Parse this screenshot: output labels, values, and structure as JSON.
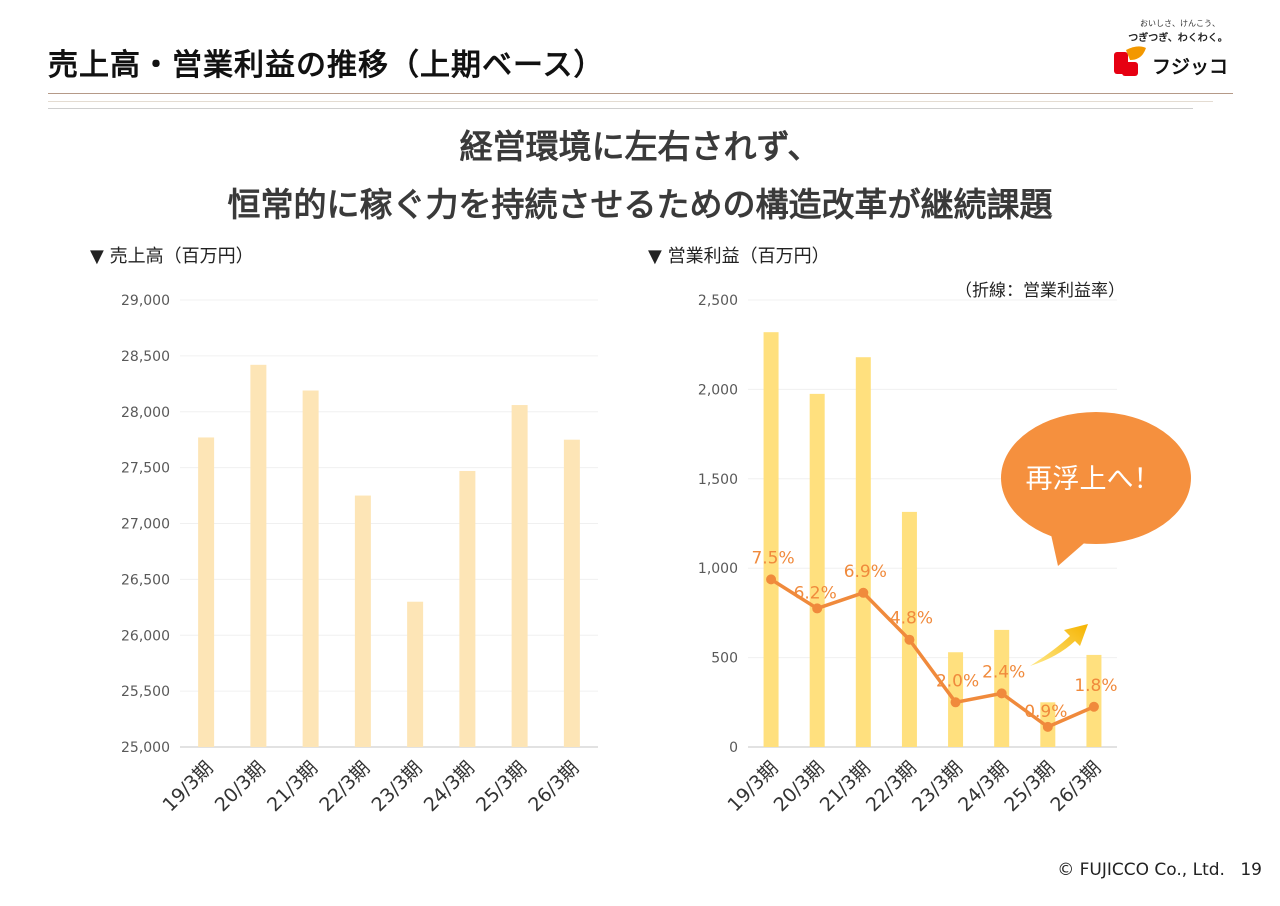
{
  "header": {
    "title": "売上高・営業利益の推移（上期ベース）",
    "logo": {
      "tagline1": "おいしさ、けんこう、",
      "tagline2": "つぎつぎ、わくわく。",
      "brand": "フジッコ"
    }
  },
  "headline": {
    "line1": "経営環境に左右されず、",
    "line2": "恒常的に稼ぐ力を持続させるための構造改革が継続課題"
  },
  "footer": {
    "copyright": "© FUJICCO Co., Ltd.",
    "page": "19"
  },
  "callout": {
    "text": "再浮上へ！",
    "color": "#F5903E"
  },
  "chart_data": [
    {
      "type": "bar",
      "title": "▼ 売上高（百万円）",
      "categories": [
        "19/3期",
        "20/3期",
        "21/3期",
        "22/3期",
        "23/3期",
        "24/3期",
        "25/3期",
        "26/3期"
      ],
      "values": [
        27770,
        28420,
        28190,
        27250,
        26300,
        27470,
        28060,
        27750
      ],
      "ylim": [
        25000,
        29000
      ],
      "yticks": [
        "25,000",
        "25,500",
        "26,000",
        "26,500",
        "27,000",
        "27,500",
        "28,000",
        "28,500",
        "29,000"
      ],
      "grid": true,
      "color": "#FDE5B6"
    },
    {
      "type": "bar+line",
      "title": "▼ 営業利益（百万円）",
      "note": "（折線：営業利益率）",
      "categories": [
        "19/3期",
        "20/3期",
        "21/3期",
        "22/3期",
        "23/3期",
        "24/3期",
        "25/3期",
        "26/3期"
      ],
      "values": [
        2320,
        1975,
        2180,
        1315,
        530,
        655,
        250,
        515
      ],
      "ylim": [
        0,
        2500
      ],
      "yticks": [
        "0",
        "500",
        "1,000",
        "1,500",
        "2,000",
        "2,500"
      ],
      "line": {
        "values": [
          7.5,
          6.2,
          6.9,
          4.8,
          2.0,
          2.4,
          0.9,
          1.8
        ],
        "labels": [
          "7.5%",
          "6.2%",
          "6.9%",
          "4.8%",
          "2.0%",
          "2.4%",
          "0.9%",
          "1.8%"
        ],
        "ylim": [
          0,
          20
        ],
        "color": "#F08A3C"
      },
      "grid": true,
      "color": "#FFE07E"
    }
  ]
}
